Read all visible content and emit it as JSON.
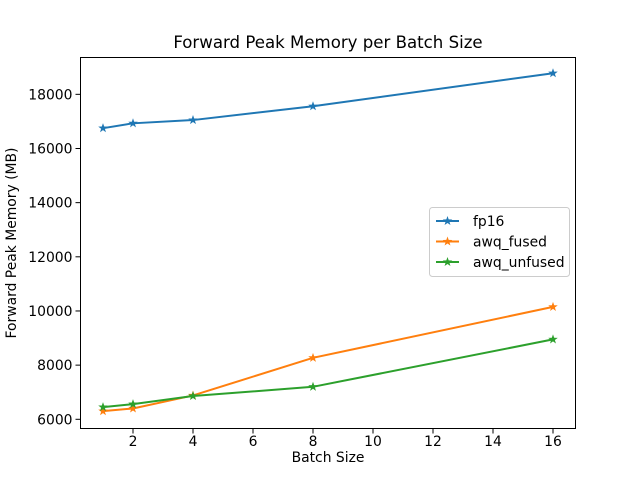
{
  "chart_data": {
    "type": "line",
    "title": "Forward Peak Memory per Batch Size",
    "xlabel": "Batch Size",
    "ylabel": "Forward Peak Memory (MB)",
    "x": [
      1,
      2,
      4,
      8,
      16
    ],
    "series": [
      {
        "name": "fp16",
        "color": "#1f77b4",
        "marker": "star",
        "values": [
          16750,
          16930,
          17050,
          17560,
          18780
        ]
      },
      {
        "name": "awq_fused",
        "color": "#ff7f0e",
        "marker": "star",
        "values": [
          6300,
          6400,
          6880,
          8270,
          10150
        ]
      },
      {
        "name": "awq_unfused",
        "color": "#2ca02c",
        "marker": "star",
        "values": [
          6450,
          6560,
          6860,
          7200,
          8950
        ]
      }
    ],
    "x_ticks": [
      "2",
      "4",
      "6",
      "8",
      "10",
      "12",
      "14",
      "16"
    ],
    "x_tick_values": [
      2,
      4,
      6,
      8,
      10,
      12,
      14,
      16
    ],
    "y_ticks": [
      "6000",
      "8000",
      "10000",
      "12000",
      "14000",
      "16000",
      "18000"
    ],
    "y_tick_values": [
      6000,
      8000,
      10000,
      12000,
      14000,
      16000,
      18000
    ],
    "xlim": [
      0.25,
      16.75
    ],
    "ylim": [
      5660,
      19360
    ],
    "grid": false,
    "legend_position": "center-right",
    "background_color": "#ffffff",
    "spine_color": "#000000",
    "legend_border_color": "#cccccc"
  }
}
